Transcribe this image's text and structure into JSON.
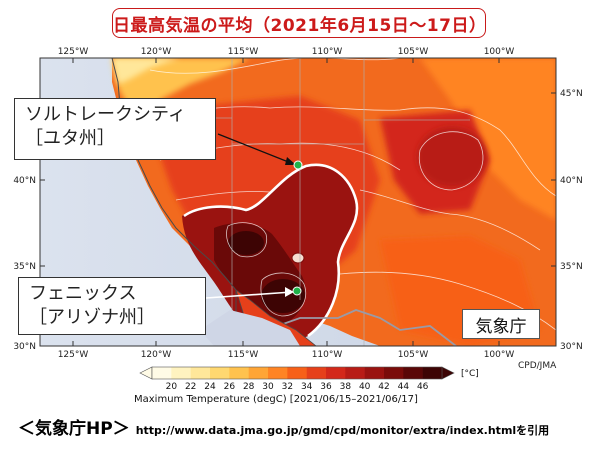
{
  "title": "日最高気温の平均（2021年6月15日～17日）",
  "map": {
    "lon_labels_top": [
      "125°W",
      "120°W",
      "115°W",
      "110°W",
      "105°W",
      "100°W"
    ],
    "lon_labels_bottom": [
      "125°W",
      "120°W",
      "115°W",
      "110°W",
      "105°W",
      "100°W"
    ],
    "lat_labels_left": [
      "40°N",
      "35°N",
      "30°N"
    ],
    "lat_labels_right": [
      "45°N",
      "40°N",
      "35°N",
      "30°N"
    ],
    "credit": "CPD/JMA",
    "agency_label": "気象庁"
  },
  "callouts": {
    "salt_lake": {
      "line1": "ソルトレークシティ",
      "line2": "［ユタ州］"
    },
    "phoenix": {
      "line1": "フェニックス",
      "line2": "［アリゾナ州］"
    }
  },
  "colorbar": {
    "ticks": [
      "20",
      "22",
      "24",
      "26",
      "28",
      "30",
      "32",
      "34",
      "36",
      "38",
      "40",
      "42",
      "44",
      "46"
    ],
    "unit": "[°C]",
    "colors": [
      "#fffbe6",
      "#fff3c0",
      "#ffe79a",
      "#ffd870",
      "#ffc24e",
      "#ffa536",
      "#ff8424",
      "#f76018",
      "#e6401a",
      "#d3281a",
      "#b81c16",
      "#9a1310",
      "#7a0c0a",
      "#5a0707",
      "#3d0404"
    ],
    "caption": "Maximum Temperature (degC) [2021/06/15–2021/06/17]"
  },
  "source": {
    "label": "＜気象庁HP＞",
    "url_text": "http://www.data.jma.go.jp/gmd/cpd/monitor/extra/index.htmlを引用"
  }
}
